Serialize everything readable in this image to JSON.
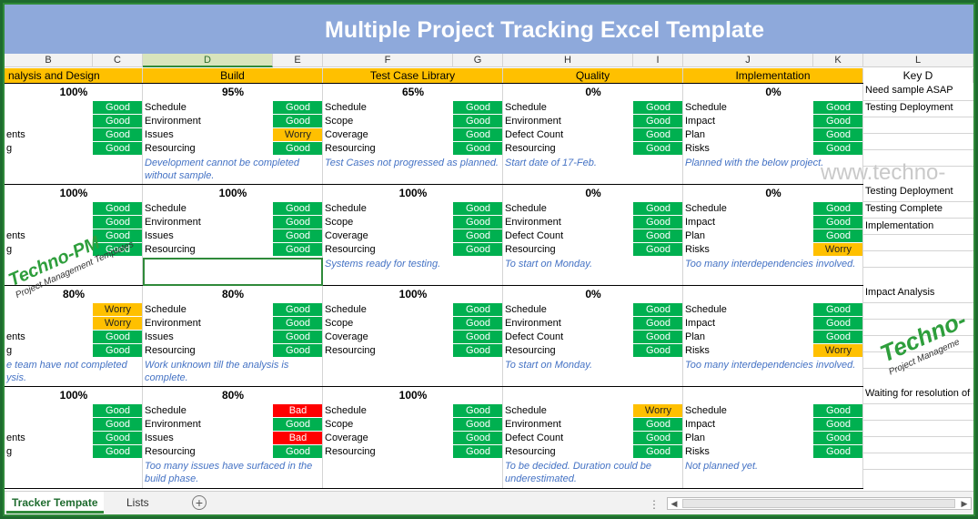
{
  "title": "Multiple Project Tracking Excel Template",
  "watermark": "www.techno-",
  "logo": {
    "name": "Techno-PM",
    "tagline": "Project Management Templates"
  },
  "logo_right": {
    "name": "Techno-",
    "tagline": "Project Manageme"
  },
  "columns": [
    "B",
    "C",
    "D",
    "E",
    "F",
    "G",
    "H",
    "I",
    "J",
    "K",
    "L"
  ],
  "selected_column": "D",
  "stages": [
    "nalysis and Design",
    "Build",
    "Test Case Library",
    "Quality",
    "Implementation",
    "Key D"
  ],
  "projects": [
    {
      "analysis": {
        "pct": "100%",
        "labels": [
          "",
          "",
          "ents",
          "g"
        ],
        "status": [
          "Good",
          "Good",
          "Good",
          "Good"
        ],
        "comment": ""
      },
      "build": {
        "pct": "95%",
        "labels": [
          "Schedule",
          "Environment",
          "Issues",
          "Resourcing"
        ],
        "status": [
          "Good",
          "Good",
          "Worry",
          "Good"
        ],
        "comment": "Development cannot be completed without sample."
      },
      "test": {
        "pct": "65%",
        "labels": [
          "Schedule",
          "Scope",
          "Coverage",
          "Resourcing"
        ],
        "status": [
          "Good",
          "Good",
          "Good",
          "Good"
        ],
        "comment": "Test Cases not progressed as planned."
      },
      "quality": {
        "pct": "0%",
        "labels": [
          "Schedule",
          "Environment",
          "Defect Count",
          "Resourcing"
        ],
        "status": [
          "Good",
          "Good",
          "Good",
          "Good"
        ],
        "comment": "Start date of 17-Feb."
      },
      "impl": {
        "pct": "0%",
        "labels": [
          "Schedule",
          "Impact",
          "Plan",
          "Risks"
        ],
        "status": [
          "Good",
          "Good",
          "Good",
          "Good"
        ],
        "comment": "Planned with the below project."
      },
      "key": [
        "Need sample ASAP",
        "Testing Deployment"
      ]
    },
    {
      "analysis": {
        "pct": "100%",
        "labels": [
          "",
          "",
          "ents",
          "g"
        ],
        "status": [
          "Good",
          "Good",
          "Good",
          "Good"
        ],
        "comment": ""
      },
      "build": {
        "pct": "100%",
        "labels": [
          "Schedule",
          "Environment",
          "Issues",
          "Resourcing"
        ],
        "status": [
          "Good",
          "Good",
          "Good",
          "Good"
        ],
        "comment": ""
      },
      "test": {
        "pct": "100%",
        "labels": [
          "Schedule",
          "Scope",
          "Coverage",
          "Resourcing"
        ],
        "status": [
          "Good",
          "Good",
          "Good",
          "Good"
        ],
        "comment": "Systems ready for testing."
      },
      "quality": {
        "pct": "0%",
        "labels": [
          "Schedule",
          "Environment",
          "Defect Count",
          "Resourcing"
        ],
        "status": [
          "Good",
          "Good",
          "Good",
          "Good"
        ],
        "comment": "To start on Monday."
      },
      "impl": {
        "pct": "0%",
        "labels": [
          "Schedule",
          "Impact",
          "Plan",
          "Risks"
        ],
        "status": [
          "Good",
          "Good",
          "Good",
          "Worry"
        ],
        "comment": "Too many interdependencies involved."
      },
      "key": [
        "Testing Deployment",
        "Testing Complete",
        "Implementation"
      ]
    },
    {
      "analysis": {
        "pct": "80%",
        "labels": [
          "",
          "",
          "ents",
          "g"
        ],
        "status": [
          "Worry",
          "Worry",
          "Good",
          "Good"
        ],
        "comment": "e team have not completed ysis."
      },
      "build": {
        "pct": "80%",
        "labels": [
          "Schedule",
          "Environment",
          "Issues",
          "Resourcing"
        ],
        "status": [
          "Good",
          "Good",
          "Good",
          "Good"
        ],
        "comment": "Work unknown till the analysis is complete."
      },
      "test": {
        "pct": "100%",
        "labels": [
          "Schedule",
          "Scope",
          "Coverage",
          "Resourcing"
        ],
        "status": [
          "Good",
          "Good",
          "Good",
          "Good"
        ],
        "comment": ""
      },
      "quality": {
        "pct": "0%",
        "labels": [
          "Schedule",
          "Environment",
          "Defect Count",
          "Resourcing"
        ],
        "status": [
          "Good",
          "Good",
          "Good",
          "Good"
        ],
        "comment": "To start on Monday."
      },
      "impl": {
        "pct": "",
        "labels": [
          "Schedule",
          "Impact",
          "Plan",
          "Risks"
        ],
        "status": [
          "Good",
          "Good",
          "Good",
          "Worry"
        ],
        "comment": "Too many interdependencies involved."
      },
      "key": [
        "Impact Analysis"
      ]
    },
    {
      "analysis": {
        "pct": "100%",
        "labels": [
          "",
          "",
          "ents",
          "g"
        ],
        "status": [
          "Good",
          "Good",
          "Good",
          "Good"
        ],
        "comment": ""
      },
      "build": {
        "pct": "80%",
        "labels": [
          "Schedule",
          "Environment",
          "Issues",
          "Resourcing"
        ],
        "status": [
          "Bad",
          "Good",
          "Bad",
          "Good"
        ],
        "comment": "Too many issues have surfaced in the build phase."
      },
      "test": {
        "pct": "100%",
        "labels": [
          "Schedule",
          "Scope",
          "Coverage",
          "Resourcing"
        ],
        "status": [
          "Good",
          "Good",
          "Good",
          "Good"
        ],
        "comment": ""
      },
      "quality": {
        "pct": "",
        "labels": [
          "Schedule",
          "Environment",
          "Defect Count",
          "Resourcing"
        ],
        "status": [
          "Worry",
          "Good",
          "Good",
          "Good"
        ],
        "comment": "To be decided. Duration could be underestimated."
      },
      "impl": {
        "pct": "",
        "labels": [
          "Schedule",
          "Impact",
          "Plan",
          "Risks"
        ],
        "status": [
          "Good",
          "Good",
          "Good",
          "Good"
        ],
        "comment": "Not planned yet."
      },
      "key": [
        "Waiting for resolution of is"
      ]
    }
  ],
  "tabs": {
    "active": "Tracker Tempate",
    "other": "Lists"
  },
  "colors": {
    "good": "#00b050",
    "worry": "#ffc000",
    "bad": "#ff0000",
    "stage_header": "#ffc000",
    "title_bar": "#8ea9db"
  }
}
